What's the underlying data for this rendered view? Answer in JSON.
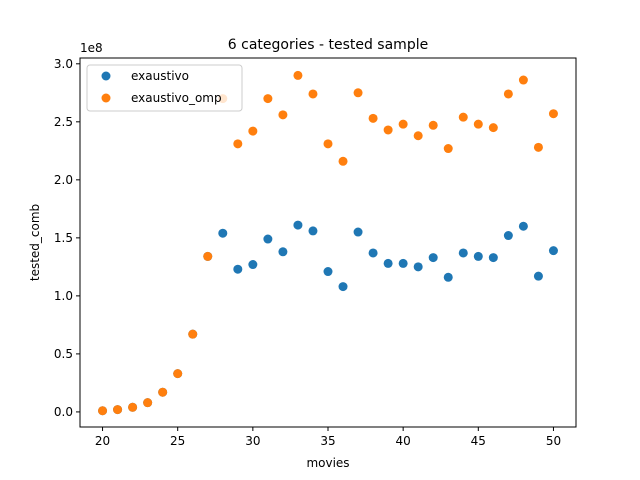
{
  "chart_data": {
    "type": "scatter",
    "title": "6 categories - tested sample",
    "xlabel": "movies",
    "ylabel": "tested_comb",
    "y_offset_text": "1e8",
    "xlim": [
      18.5,
      51.5
    ],
    "ylim": [
      -0.13,
      3.05
    ],
    "x_ticks": [
      20,
      25,
      30,
      35,
      40,
      45,
      50
    ],
    "x_tick_labels": [
      "20",
      "25",
      "30",
      "35",
      "40",
      "45",
      "50"
    ],
    "y_ticks": [
      0.0,
      0.5,
      1.0,
      1.5,
      2.0,
      2.5,
      3.0
    ],
    "y_tick_labels": [
      "0.0",
      "0.5",
      "1.0",
      "1.5",
      "2.0",
      "2.5",
      "3.0"
    ],
    "grid": false,
    "legend_position": "top-left",
    "series": [
      {
        "name": "exaustivo",
        "color": "#1f77b4",
        "x": [
          20,
          21,
          22,
          23,
          24,
          25,
          26,
          27,
          28,
          29,
          30,
          31,
          32,
          33,
          34,
          35,
          36,
          37,
          38,
          39,
          40,
          41,
          42,
          43,
          44,
          45,
          46,
          47,
          48,
          49,
          50
        ],
        "y": [
          0.01,
          0.02,
          0.04,
          0.08,
          0.17,
          0.33,
          0.67,
          1.34,
          1.54,
          1.23,
          1.27,
          1.49,
          1.38,
          1.61,
          1.56,
          1.21,
          1.08,
          1.55,
          1.37,
          1.28,
          1.28,
          1.25,
          1.33,
          1.16,
          1.37,
          1.34,
          1.33,
          1.52,
          1.6,
          1.17,
          1.39
        ]
      },
      {
        "name": "exaustivo_omp",
        "color": "#ff7f0e",
        "x": [
          20,
          21,
          22,
          23,
          24,
          25,
          26,
          27,
          28,
          29,
          30,
          31,
          32,
          33,
          34,
          35,
          36,
          37,
          38,
          39,
          40,
          41,
          42,
          43,
          44,
          45,
          46,
          47,
          48,
          49,
          50
        ],
        "y": [
          0.01,
          0.02,
          0.04,
          0.08,
          0.17,
          0.33,
          0.67,
          1.34,
          2.7,
          2.31,
          2.42,
          2.7,
          2.56,
          2.9,
          2.74,
          2.31,
          2.16,
          2.75,
          2.53,
          2.43,
          2.48,
          2.38,
          2.47,
          2.27,
          2.54,
          2.48,
          2.45,
          2.74,
          2.86,
          2.28,
          2.57
        ]
      }
    ]
  }
}
